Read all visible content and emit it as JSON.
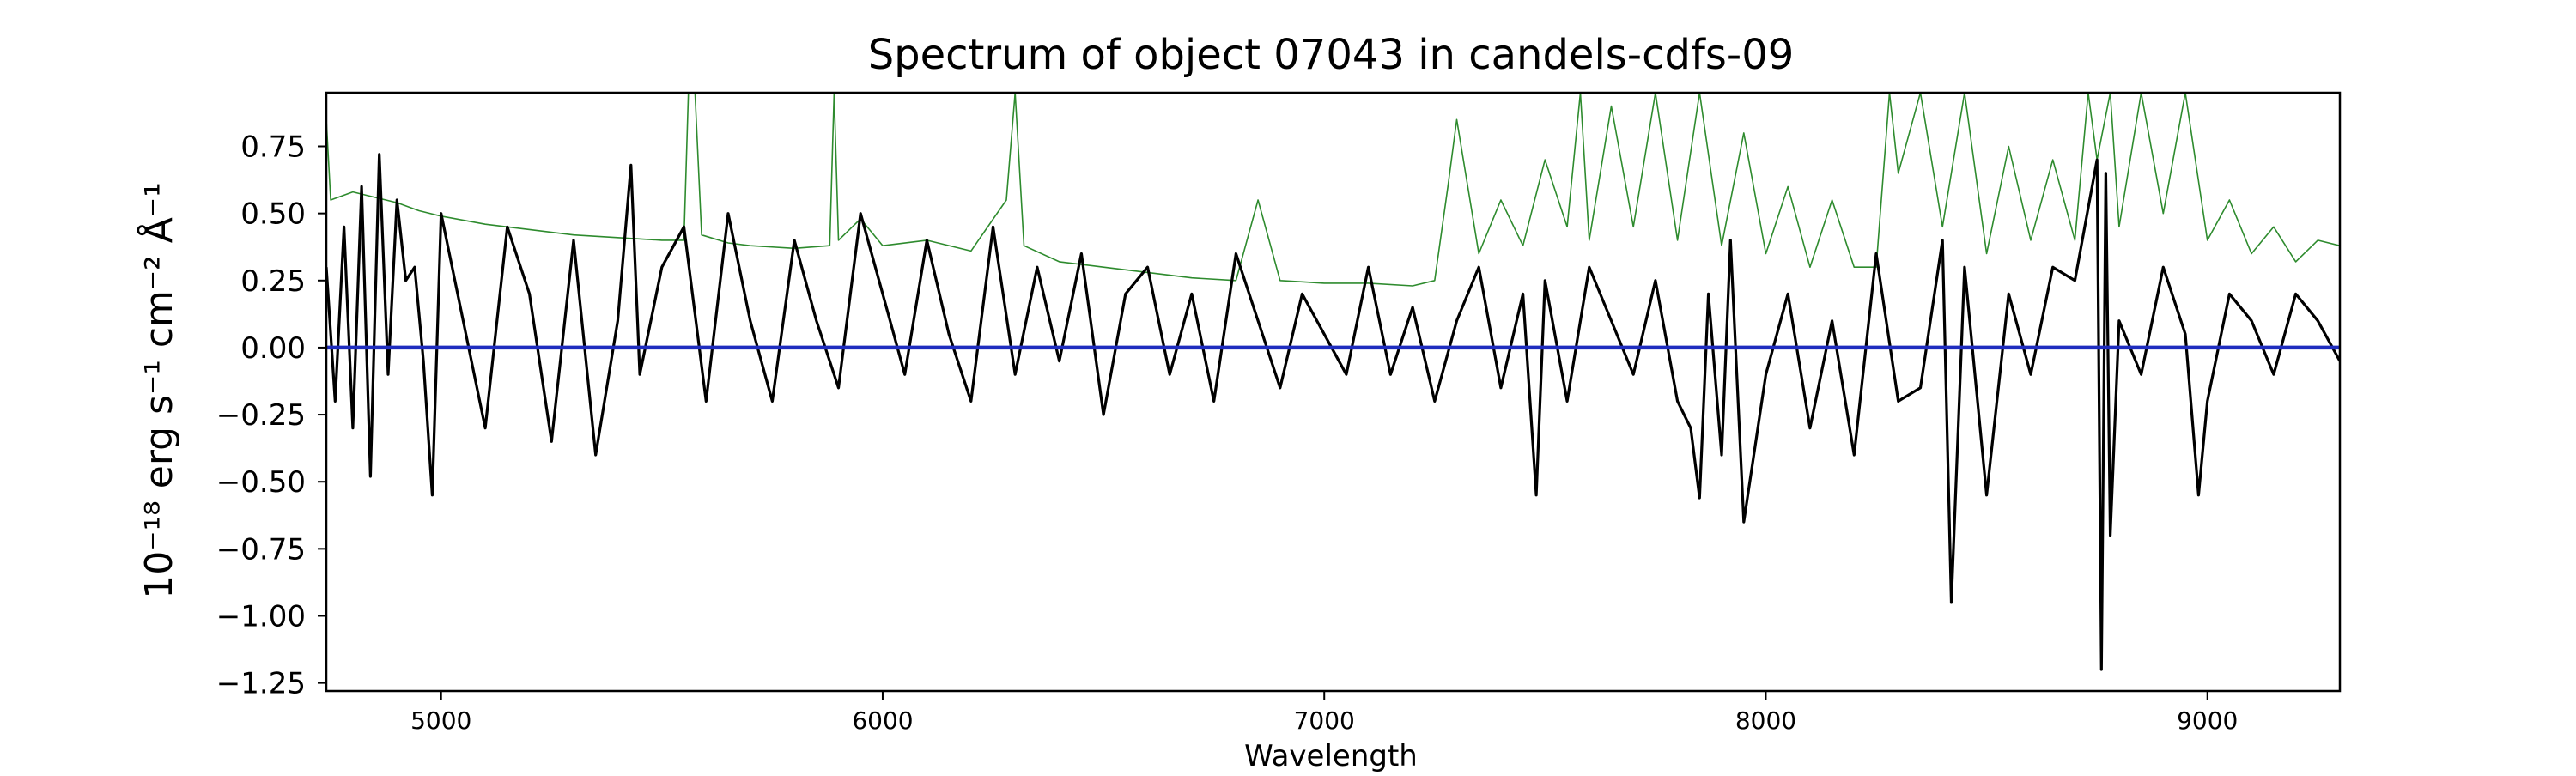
{
  "chart_data": {
    "type": "line",
    "title": "Spectrum of object 07043 in candels-cdfs-09",
    "xlabel": "Wavelength",
    "ylabel": "10⁻¹⁸ erg s⁻¹ cm⁻² Å⁻¹",
    "xlim": [
      4740,
      9300
    ],
    "ylim": [
      -1.28,
      0.95
    ],
    "xticks": [
      5000,
      6000,
      7000,
      8000,
      9000
    ],
    "xtick_labels": [
      "5000",
      "6000",
      "7000",
      "8000",
      "9000"
    ],
    "yticks": [
      0.75,
      0.5,
      0.25,
      0.0,
      -0.25,
      -0.5,
      -0.75,
      -1.0,
      -1.25
    ],
    "ytick_labels": [
      "0.75",
      "0.50",
      "0.25",
      "0.00",
      "−0.25",
      "−0.50",
      "−0.75",
      "−1.00",
      "−1.25"
    ],
    "grid": false,
    "legend": "none",
    "series": [
      {
        "role": "flux",
        "color": "#000000",
        "x": [
          4740,
          4760,
          4780,
          4800,
          4820,
          4840,
          4860,
          4880,
          4900,
          4920,
          4940,
          4960,
          4980,
          5000,
          5050,
          5100,
          5150,
          5200,
          5250,
          5300,
          5350,
          5400,
          5430,
          5450,
          5500,
          5550,
          5600,
          5650,
          5700,
          5750,
          5800,
          5850,
          5900,
          5950,
          6000,
          6050,
          6100,
          6150,
          6200,
          6250,
          6300,
          6350,
          6400,
          6450,
          6500,
          6550,
          6600,
          6650,
          6700,
          6750,
          6800,
          6850,
          6900,
          6950,
          7000,
          7050,
          7100,
          7150,
          7200,
          7250,
          7300,
          7350,
          7400,
          7450,
          7480,
          7500,
          7550,
          7600,
          7650,
          7700,
          7750,
          7800,
          7830,
          7850,
          7870,
          7900,
          7920,
          7950,
          8000,
          8050,
          8100,
          8150,
          8200,
          8250,
          8300,
          8350,
          8400,
          8420,
          8450,
          8500,
          8550,
          8600,
          8650,
          8700,
          8750,
          8760,
          8770,
          8780,
          8800,
          8850,
          8900,
          8950,
          8980,
          9000,
          9050,
          9100,
          9150,
          9200,
          9250,
          9300
        ],
        "y": [
          0.3,
          -0.2,
          0.45,
          -0.3,
          0.6,
          -0.48,
          0.72,
          -0.1,
          0.55,
          0.25,
          0.3,
          -0.05,
          -0.55,
          0.5,
          0.1,
          -0.3,
          0.45,
          0.2,
          -0.35,
          0.4,
          -0.4,
          0.1,
          0.68,
          -0.1,
          0.3,
          0.45,
          -0.2,
          0.5,
          0.1,
          -0.2,
          0.4,
          0.1,
          -0.15,
          0.5,
          0.2,
          -0.1,
          0.4,
          0.05,
          -0.2,
          0.45,
          -0.1,
          0.3,
          -0.05,
          0.35,
          -0.25,
          0.2,
          0.3,
          -0.1,
          0.2,
          -0.2,
          0.35,
          0.1,
          -0.15,
          0.2,
          0.05,
          -0.1,
          0.3,
          -0.1,
          0.15,
          -0.2,
          0.1,
          0.3,
          -0.15,
          0.2,
          -0.55,
          0.25,
          -0.2,
          0.3,
          0.1,
          -0.1,
          0.25,
          -0.2,
          -0.3,
          -0.56,
          0.2,
          -0.4,
          0.4,
          -0.65,
          -0.1,
          0.2,
          -0.3,
          0.1,
          -0.4,
          0.35,
          -0.2,
          -0.15,
          0.4,
          -0.95,
          0.3,
          -0.55,
          0.2,
          -0.1,
          0.3,
          0.25,
          0.7,
          -1.2,
          0.65,
          -0.7,
          0.1,
          -0.1,
          0.3,
          0.05,
          -0.55,
          -0.2,
          0.2,
          0.1,
          -0.1,
          0.2,
          0.1,
          -0.05
        ]
      },
      {
        "role": "error",
        "color": "#2e8b2e",
        "x": [
          4740,
          4750,
          4800,
          4850,
          4900,
          4950,
          5000,
          5100,
          5200,
          5300,
          5400,
          5500,
          5550,
          5560,
          5575,
          5590,
          5650,
          5700,
          5800,
          5880,
          5890,
          5900,
          5950,
          6000,
          6100,
          6200,
          6280,
          6300,
          6320,
          6400,
          6500,
          6600,
          6700,
          6800,
          6850,
          6900,
          7000,
          7100,
          7200,
          7250,
          7280,
          7300,
          7350,
          7400,
          7450,
          7500,
          7550,
          7580,
          7600,
          7650,
          7700,
          7750,
          7800,
          7850,
          7900,
          7950,
          8000,
          8050,
          8100,
          8150,
          8200,
          8250,
          8280,
          8300,
          8350,
          8400,
          8450,
          8500,
          8550,
          8600,
          8650,
          8700,
          8730,
          8750,
          8780,
          8800,
          8850,
          8900,
          8950,
          9000,
          9050,
          9100,
          9150,
          9200,
          9250,
          9300
        ],
        "y": [
          0.85,
          0.55,
          0.58,
          0.56,
          0.54,
          0.51,
          0.49,
          0.46,
          0.44,
          0.42,
          0.41,
          0.4,
          0.4,
          0.95,
          0.95,
          0.42,
          0.39,
          0.38,
          0.37,
          0.38,
          0.95,
          0.4,
          0.48,
          0.38,
          0.4,
          0.36,
          0.55,
          0.95,
          0.38,
          0.32,
          0.3,
          0.28,
          0.26,
          0.25,
          0.55,
          0.25,
          0.24,
          0.24,
          0.23,
          0.25,
          0.6,
          0.85,
          0.35,
          0.55,
          0.38,
          0.7,
          0.45,
          0.95,
          0.4,
          0.9,
          0.45,
          0.95,
          0.4,
          0.95,
          0.38,
          0.8,
          0.35,
          0.6,
          0.3,
          0.55,
          0.3,
          0.3,
          0.95,
          0.65,
          0.95,
          0.45,
          0.95,
          0.35,
          0.75,
          0.4,
          0.7,
          0.4,
          0.95,
          0.7,
          0.95,
          0.45,
          0.95,
          0.5,
          0.95,
          0.4,
          0.55,
          0.35,
          0.45,
          0.32,
          0.4,
          0.38
        ]
      },
      {
        "role": "zero-line",
        "color": "#1f2dbf",
        "x": [
          4740,
          9300
        ],
        "y": [
          0.0,
          0.0
        ]
      }
    ]
  }
}
